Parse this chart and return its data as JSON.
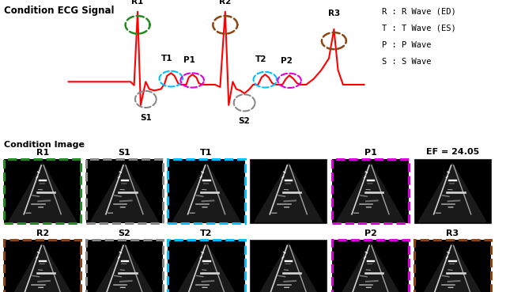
{
  "title_ecg": "Condition ECG Signal",
  "title_img": "Condition Image",
  "legend_lines": [
    "R : R Wave (ED)",
    "T : T Wave (ES)",
    "P : P Wave",
    "S : S Wave"
  ],
  "ef_text": "EF = 24.05",
  "ecg_color": "#ff0000",
  "bg_color": "#ffffff",
  "circle_colors_hex": {
    "R1": "#228B22",
    "R2": "#8B4513",
    "R3": "#8B4513",
    "T1": "#00bfff",
    "T2": "#00bfff",
    "P1": "#dd00dd",
    "P2": "#dd00dd",
    "S1": "#888888",
    "S2": "#888888"
  },
  "border_colors": {
    "R1": "#228B22",
    "S1": "#888888",
    "T1": "#00bfff",
    "blank1": null,
    "P1": "#dd00dd",
    "ef": null,
    "R2": "#8B4513",
    "S2": "#888888",
    "T2": "#00bfff",
    "blank2": null,
    "P2": "#dd00dd",
    "R3": "#8B4513"
  },
  "row1_labels": [
    "R1",
    "S1",
    "T1",
    "",
    "P1",
    "EF = 24.05"
  ],
  "row2_labels": [
    "R2",
    "S2",
    "T2",
    "",
    "P2",
    "R3"
  ],
  "ecg_ybase": 0.7,
  "ecg_ytop": 0.97,
  "ecg_ybottom": 0.52
}
